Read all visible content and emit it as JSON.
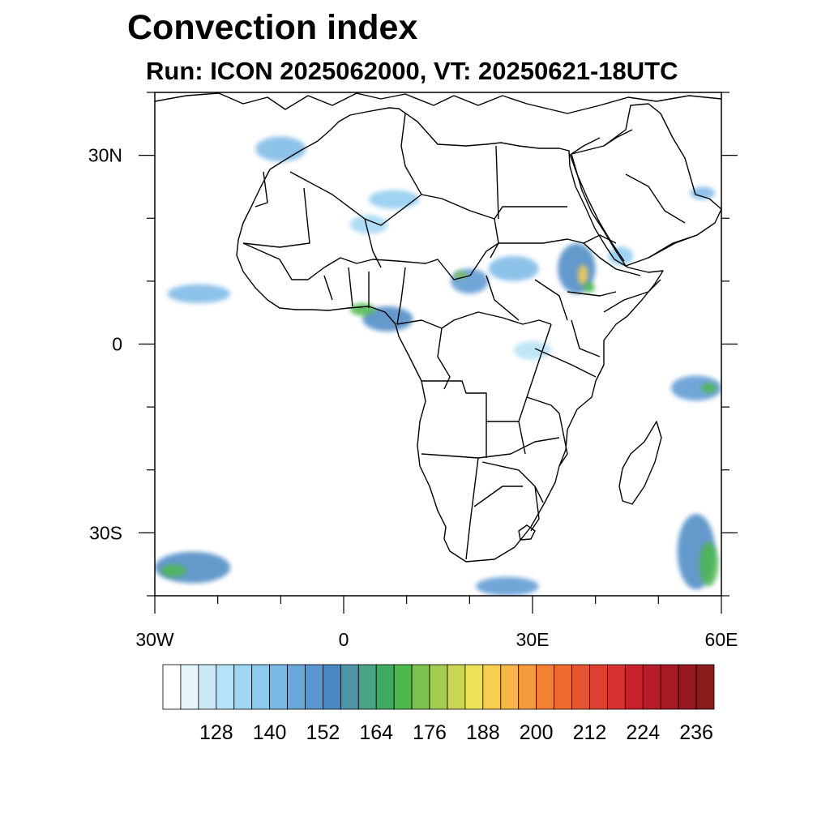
{
  "title": "Convection index",
  "subtitle": "Run: ICON 2025062000,  VT: 20250621-18UTC",
  "map": {
    "projection": "cylindrical equidistant",
    "lon_range": [
      -30,
      60
    ],
    "lat_range": [
      -40,
      40
    ],
    "lon_ticks": [
      {
        "value": -30,
        "label": "30W"
      },
      {
        "value": 0,
        "label": "0"
      },
      {
        "value": 30,
        "label": "30E"
      },
      {
        "value": 60,
        "label": "60E"
      }
    ],
    "lat_ticks": [
      {
        "value": 30,
        "label": "30N"
      },
      {
        "value": 0,
        "label": "0"
      },
      {
        "value": -30,
        "label": "30S"
      }
    ],
    "minor_tick_step_deg": 10,
    "boundaries": "coastlines and country borders (black)"
  },
  "colorbar": {
    "levels": [
      116,
      120,
      124,
      128,
      132,
      136,
      140,
      144,
      148,
      152,
      156,
      160,
      164,
      168,
      172,
      176,
      180,
      184,
      188,
      192,
      196,
      200,
      204,
      208,
      212,
      216,
      220,
      224,
      228,
      232,
      236
    ],
    "colors": [
      "#ffffff",
      "#e6f4fb",
      "#cbe8f7",
      "#b7e1f6",
      "#9fd6f2",
      "#8ccbee",
      "#7ab8e6",
      "#6aa8dc",
      "#5a97d2",
      "#4a88c4",
      "#4e96a6",
      "#4aa287",
      "#3fac62",
      "#4db84d",
      "#7cc14e",
      "#a3cc52",
      "#c9d553",
      "#eee257",
      "#f8cd50",
      "#f8b548",
      "#f69a3e",
      "#f38035",
      "#ee6a2f",
      "#e55530",
      "#dd4030",
      "#d63232",
      "#c8232d",
      "#b61d2a",
      "#a51a25",
      "#961820",
      "#8a1a1c"
    ],
    "labels": [
      "128",
      "140",
      "152",
      "164",
      "176",
      "188",
      "200",
      "212",
      "224",
      "236"
    ]
  },
  "convection_cells": [
    {
      "lon": -10,
      "lat": 31,
      "rx": 4,
      "ry": 2,
      "level": 6
    },
    {
      "lon": 8,
      "lat": 23,
      "rx": 4,
      "ry": 1.5,
      "level": 5
    },
    {
      "lon": 4,
      "lat": 19,
      "rx": 3,
      "ry": 1.5,
      "level": 4
    },
    {
      "lon": 7,
      "lat": 4,
      "rx": 4,
      "ry": 2,
      "level": 9
    },
    {
      "lon": 3,
      "lat": 5.5,
      "rx": 2,
      "ry": 1,
      "level": 13
    },
    {
      "lon": 20,
      "lat": 10,
      "rx": 3,
      "ry": 2,
      "level": 8
    },
    {
      "lon": 18.5,
      "lat": 11,
      "rx": 1,
      "ry": 0.6,
      "level": 14
    },
    {
      "lon": 27,
      "lat": 12,
      "rx": 4,
      "ry": 2,
      "level": 6
    },
    {
      "lon": 37,
      "lat": 12,
      "rx": 3,
      "ry": 4,
      "level": 9
    },
    {
      "lon": 38,
      "lat": 11,
      "rx": 0.8,
      "ry": 1.6,
      "level": 18
    },
    {
      "lon": 39,
      "lat": 9,
      "rx": 0.9,
      "ry": 0.8,
      "level": 13
    },
    {
      "lon": 44,
      "lat": 14,
      "rx": 2,
      "ry": 1.5,
      "level": 5
    },
    {
      "lon": -23,
      "lat": 8,
      "rx": 5,
      "ry": 1.5,
      "level": 6
    },
    {
      "lon": 56,
      "lat": -7,
      "rx": 4,
      "ry": 2,
      "level": 8
    },
    {
      "lon": 58,
      "lat": -7,
      "rx": 1.2,
      "ry": 0.8,
      "level": 13
    },
    {
      "lon": -24,
      "lat": -35.5,
      "rx": 6,
      "ry": 2.5,
      "level": 9
    },
    {
      "lon": -27,
      "lat": -36,
      "rx": 2,
      "ry": 1,
      "level": 13
    },
    {
      "lon": 56,
      "lat": -33,
      "rx": 3,
      "ry": 6,
      "level": 9
    },
    {
      "lon": 58,
      "lat": -35,
      "rx": 1.5,
      "ry": 3.5,
      "level": 13
    },
    {
      "lon": 26,
      "lat": -38.5,
      "rx": 5,
      "ry": 1.5,
      "level": 8
    },
    {
      "lon": 57,
      "lat": 24,
      "rx": 2,
      "ry": 1,
      "level": 6
    },
    {
      "lon": 30,
      "lat": -1,
      "rx": 3,
      "ry": 1.5,
      "level": 3
    }
  ]
}
